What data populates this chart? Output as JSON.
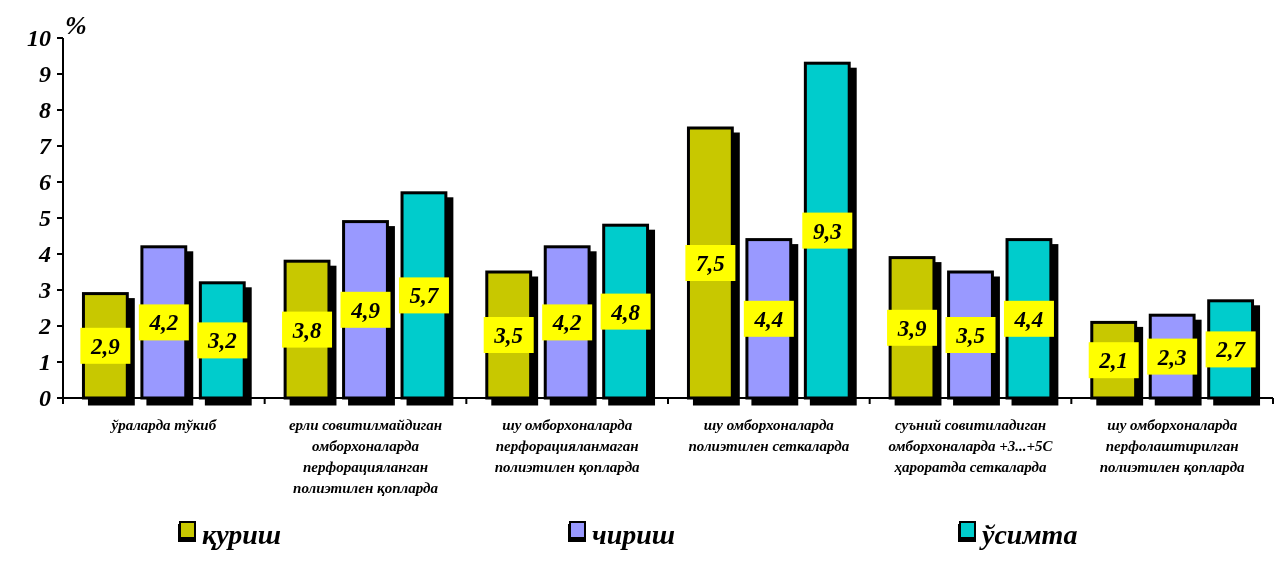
{
  "chart_data": {
    "type": "bar",
    "ylabel": "%",
    "categories": [
      "ўраларда тўкиб",
      "ерли совитилмайдиган омборхоналарда перфорацияланган полиэтилен қопларда",
      "шу омборхоналарда перфорацияланмаган полиэтилен қопларда",
      "шу  омборхоналарда полиэтилен сеткаларда",
      "суъний совитиладиган омборхоналарда +3...+5С ҳароратда сеткаларда",
      "шу  омборхоналарда перфолаштирилган полиэтилен қопларда"
    ],
    "series": [
      {
        "name": "қуриш",
        "color": "#c8c800",
        "values": [
          2.9,
          3.8,
          3.5,
          7.5,
          3.9,
          2.1
        ],
        "value_labels": [
          "2,9",
          "3,8",
          "3,5",
          "7,5",
          "3,9",
          "2,1"
        ]
      },
      {
        "name": "чириш",
        "color": "#9999ff",
        "values": [
          4.2,
          4.9,
          4.2,
          4.4,
          3.5,
          2.3
        ],
        "value_labels": [
          "4,2",
          "4,9",
          "4,2",
          "4,4",
          "3,5",
          "2,3"
        ]
      },
      {
        "name": "ўсимта",
        "color": "#00cccc",
        "values": [
          3.2,
          5.7,
          4.8,
          9.3,
          4.4,
          2.7
        ],
        "value_labels": [
          "3,2",
          "5,7",
          "4,8",
          "9,3",
          "4,4",
          "2,7"
        ]
      }
    ],
    "ylim": [
      0,
      10
    ],
    "yticks": [
      0,
      1,
      2,
      3,
      4,
      5,
      6,
      7,
      8,
      9,
      10
    ],
    "legend": "bottom"
  }
}
